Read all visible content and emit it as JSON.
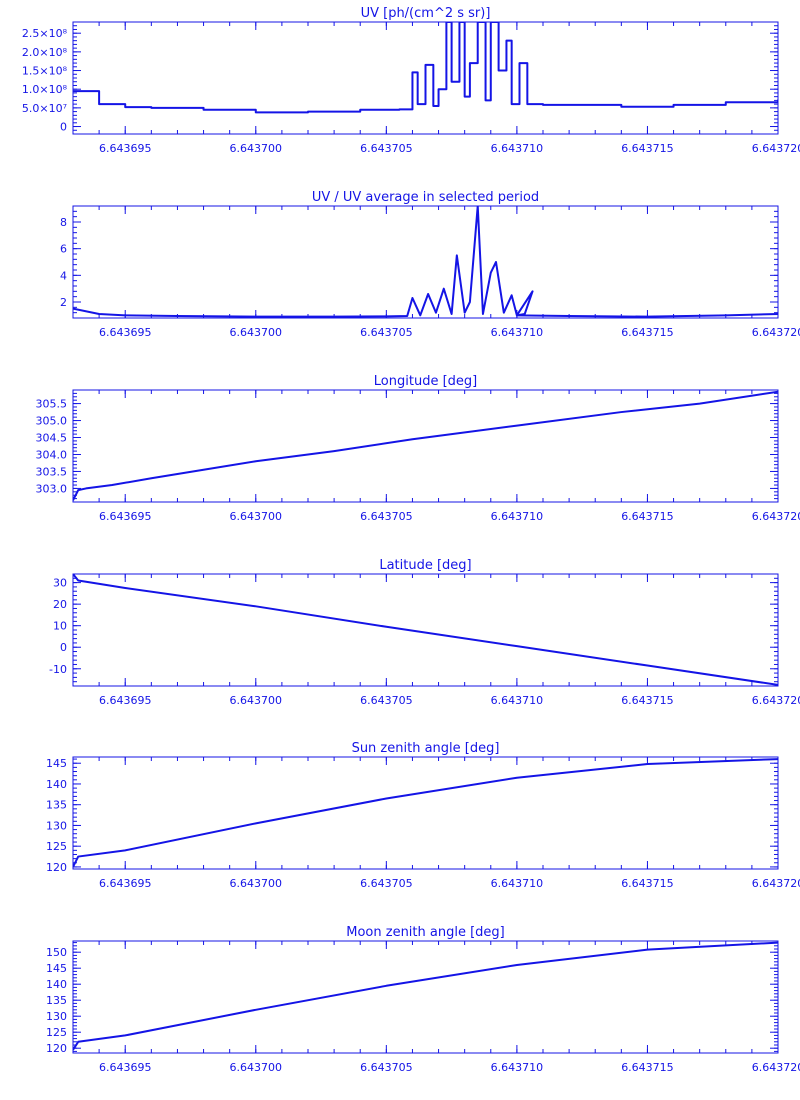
{
  "chart_data": [
    {
      "type": "line",
      "title": "UV [ph/(cm^2 s sr)]",
      "xlim": [
        6.643693,
        6.64372
      ],
      "ylim": [
        -20000000.0,
        280000000.0
      ],
      "y_scientific": true,
      "x_ticks": [
        "6.643695",
        "6.643700",
        "6.643705",
        "6.643710",
        "6.643715",
        "6.643720"
      ],
      "y_ticks": [
        "0",
        "5.0×10⁷",
        "1.0×10⁸",
        "1.5×10⁸",
        "2.0×10⁸",
        "2.5×10⁸"
      ],
      "y_tick_values": [
        0,
        50000000.0,
        100000000.0,
        150000000.0,
        200000000.0,
        250000000.0
      ],
      "step": true,
      "series": [
        {
          "x": [
            6.643693,
            6.643694,
            6.643695,
            6.643696,
            6.643698,
            6.6437,
            6.643702,
            6.643704,
            6.6437055,
            6.643706,
            6.6437062,
            6.6437065,
            6.6437068,
            6.643707,
            6.6437073,
            6.6437075,
            6.6437078,
            6.643708,
            6.6437082,
            6.6437085,
            6.6437088,
            6.643709,
            6.6437093,
            6.6437096,
            6.6437098,
            6.6437101,
            6.6437104,
            6.643711,
            6.643714,
            6.643716,
            6.643718,
            6.64372
          ],
          "y": [
            95000000.0,
            60000000.0,
            52000000.0,
            50000000.0,
            45000000.0,
            38000000.0,
            40000000.0,
            45000000.0,
            46000000.0,
            145000000.0,
            60000000.0,
            165000000.0,
            55000000.0,
            100000000.0,
            280000000.0,
            120000000.0,
            280000000.0,
            80000000.0,
            170000000.0,
            280000000.0,
            70000000.0,
            280000000.0,
            150000000.0,
            230000000.0,
            60000000.0,
            170000000.0,
            60000000.0,
            58000000.0,
            53000000.0,
            58000000.0,
            65000000.0,
            72000000.0
          ]
        }
      ]
    },
    {
      "type": "line",
      "title": "UV / UV average in selected period",
      "xlim": [
        6.643693,
        6.64372
      ],
      "ylim": [
        0.8,
        9.2
      ],
      "x_ticks": [
        "6.643695",
        "6.643700",
        "6.643705",
        "6.643710",
        "6.643715",
        "6.643720"
      ],
      "y_ticks": [
        "2",
        "4",
        "6",
        "8"
      ],
      "y_tick_values": [
        2,
        4,
        6,
        8
      ],
      "step": false,
      "series": [
        {
          "x": [
            6.643693,
            6.643694,
            6.643695,
            6.643697,
            6.6437,
            6.643703,
            6.643705,
            6.6437058,
            6.643706,
            6.6437063,
            6.6437066,
            6.6437069,
            6.6437072,
            6.6437075,
            6.6437077,
            6.643708,
            6.6437082,
            6.6437085,
            6.6437087,
            6.643709,
            6.6437092,
            6.6437095,
            6.6437098,
            6.64371,
            6.6437103,
            6.6437106,
            6.64371,
            6.643712,
            6.643715,
            6.643718,
            6.64372
          ],
          "y": [
            1.5,
            1.1,
            1.0,
            0.95,
            0.9,
            0.9,
            0.92,
            0.95,
            2.3,
            1.0,
            2.6,
            1.2,
            3.0,
            1.1,
            5.5,
            1.2,
            2.0,
            9.2,
            1.1,
            4.2,
            5.0,
            1.2,
            2.5,
            1.0,
            1.1,
            2.8,
            1.0,
            0.95,
            0.9,
            1.0,
            1.1
          ]
        }
      ]
    },
    {
      "type": "line",
      "title": "Longitude [deg]",
      "xlim": [
        6.643693,
        6.64372
      ],
      "ylim": [
        302.6,
        305.9
      ],
      "x_ticks": [
        "6.643695",
        "6.643700",
        "6.643705",
        "6.643710",
        "6.643715",
        "6.643720"
      ],
      "y_ticks": [
        "303.0",
        "303.5",
        "304.0",
        "304.5",
        "305.0",
        "305.5"
      ],
      "y_tick_values": [
        303.0,
        303.5,
        304.0,
        304.5,
        305.0,
        305.5
      ],
      "step": false,
      "series": [
        {
          "x": [
            6.643693,
            6.6436932,
            6.6436935,
            6.6436945,
            6.643696,
            6.643698,
            6.6437,
            6.643703,
            6.643706,
            6.64371,
            6.643714,
            6.643717,
            6.64372
          ],
          "y": [
            302.65,
            302.95,
            303.0,
            303.1,
            303.3,
            303.55,
            303.8,
            304.1,
            304.45,
            304.85,
            305.25,
            305.5,
            305.85
          ]
        }
      ]
    },
    {
      "type": "line",
      "title": "Latitude [deg]",
      "xlim": [
        6.643693,
        6.64372
      ],
      "ylim": [
        -18,
        34
      ],
      "x_ticks": [
        "6.643695",
        "6.643700",
        "6.643705",
        "6.643710",
        "6.643715",
        "6.643720"
      ],
      "y_ticks": [
        "-10",
        "0",
        "10",
        "20",
        "30"
      ],
      "y_tick_values": [
        -10,
        0,
        10,
        20,
        30
      ],
      "step": false,
      "series": [
        {
          "x": [
            6.643693,
            6.6436932,
            6.643695,
            6.6437,
            6.643705,
            6.64371,
            6.643715,
            6.64372
          ],
          "y": [
            34,
            31,
            27.5,
            19,
            9.5,
            0.5,
            -8.5,
            -17.5
          ]
        }
      ]
    },
    {
      "type": "line",
      "title": "Sun zenith angle [deg]",
      "xlim": [
        6.643693,
        6.64372
      ],
      "ylim": [
        119.5,
        146.5
      ],
      "x_ticks": [
        "6.643695",
        "6.643700",
        "6.643705",
        "6.643710",
        "6.643715",
        "6.643720"
      ],
      "y_ticks": [
        "120",
        "125",
        "130",
        "135",
        "140",
        "145"
      ],
      "y_tick_values": [
        120,
        125,
        130,
        135,
        140,
        145
      ],
      "step": false,
      "series": [
        {
          "x": [
            6.643693,
            6.6436932,
            6.643695,
            6.6437,
            6.643705,
            6.64371,
            6.643715,
            6.64372
          ],
          "y": [
            120,
            122.5,
            124,
            130.5,
            136.5,
            141.5,
            144.8,
            146
          ]
        }
      ]
    },
    {
      "type": "line",
      "title": "Moon zenith angle [deg]",
      "xlim": [
        6.643693,
        6.64372
      ],
      "ylim": [
        118.5,
        153.5
      ],
      "x_ticks": [
        "6.643695",
        "6.643700",
        "6.643705",
        "6.643710",
        "6.643715",
        "6.643720"
      ],
      "y_ticks": [
        "120",
        "125",
        "130",
        "135",
        "140",
        "145",
        "150"
      ],
      "y_tick_values": [
        120,
        125,
        130,
        135,
        140,
        145,
        150
      ],
      "step": false,
      "series": [
        {
          "x": [
            6.643693,
            6.6436932,
            6.643695,
            6.6437,
            6.643705,
            6.64371,
            6.643715,
            6.64372
          ],
          "y": [
            119.5,
            122,
            124,
            132,
            139.5,
            146,
            150.8,
            153
          ]
        }
      ]
    }
  ]
}
